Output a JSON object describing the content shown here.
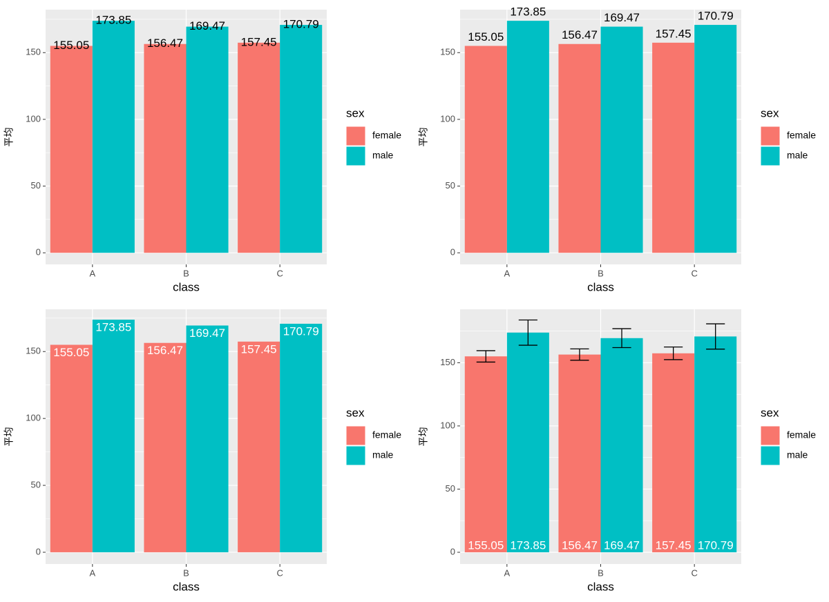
{
  "chart_data": [
    {
      "type": "bar",
      "x_label": "class",
      "y_label": "平均",
      "legend_title": "sex",
      "categories": [
        "A",
        "B",
        "C"
      ],
      "series": [
        {
          "name": "female",
          "color": "#f8766d",
          "values": [
            155.05,
            156.47,
            157.45
          ]
        },
        {
          "name": "male",
          "color": "#00bfc4",
          "values": [
            173.85,
            169.47,
            170.79
          ]
        }
      ],
      "ylim": [
        -8.7,
        182.2
      ],
      "yticks": [
        0,
        50,
        100,
        150
      ],
      "minor_yticks": [
        25,
        75,
        125,
        175
      ],
      "grid": true,
      "label_position": "center",
      "label_color": "#000000"
    },
    {
      "type": "bar",
      "x_label": "class",
      "y_label": "平均",
      "legend_title": "sex",
      "categories": [
        "A",
        "B",
        "C"
      ],
      "series": [
        {
          "name": "female",
          "color": "#f8766d",
          "values": [
            155.05,
            156.47,
            157.45
          ]
        },
        {
          "name": "male",
          "color": "#00bfc4",
          "values": [
            173.85,
            169.47,
            170.79
          ]
        }
      ],
      "ylim": [
        -8.7,
        182.2
      ],
      "yticks": [
        0,
        50,
        100,
        150
      ],
      "minor_yticks": [
        25,
        75,
        125,
        175
      ],
      "grid": true,
      "label_position": "above",
      "label_color": "#000000"
    },
    {
      "type": "bar",
      "x_label": "class",
      "y_label": "平均",
      "legend_title": "sex",
      "categories": [
        "A",
        "B",
        "C"
      ],
      "series": [
        {
          "name": "female",
          "color": "#f8766d",
          "values": [
            155.05,
            156.47,
            157.45
          ]
        },
        {
          "name": "male",
          "color": "#00bfc4",
          "values": [
            173.85,
            169.47,
            170.79
          ]
        }
      ],
      "ylim": [
        -8.8,
        181.6
      ],
      "yticks": [
        0,
        50,
        100,
        150
      ],
      "minor_yticks": [
        25,
        75,
        125,
        175
      ],
      "grid": true,
      "label_position": "inside",
      "label_color": "#ffffff"
    },
    {
      "type": "bar",
      "x_label": "class",
      "y_label": "平均",
      "legend_title": "sex",
      "categories": [
        "A",
        "B",
        "C"
      ],
      "series": [
        {
          "name": "female",
          "color": "#f8766d",
          "values": [
            155.05,
            156.47,
            157.45
          ],
          "errors": [
            4.5,
            4.5,
            5
          ]
        },
        {
          "name": "male",
          "color": "#00bfc4",
          "values": [
            173.85,
            169.47,
            170.79
          ],
          "errors": [
            10,
            7.5,
            10
          ]
        }
      ],
      "ylim": [
        -9.3,
        192.3
      ],
      "yticks": [
        0,
        50,
        100,
        150
      ],
      "minor_yticks": [
        25,
        75,
        125,
        175
      ],
      "grid": true,
      "label_position": "bottom",
      "label_color": "#ffffff"
    }
  ]
}
